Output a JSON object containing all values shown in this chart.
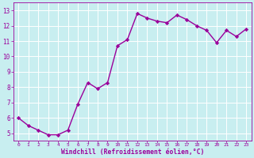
{
  "x": [
    0,
    1,
    2,
    3,
    4,
    5,
    6,
    7,
    8,
    9,
    10,
    11,
    12,
    13,
    14,
    15,
    16,
    17,
    18,
    19,
    20,
    21,
    22,
    23
  ],
  "y": [
    6.0,
    5.5,
    5.2,
    4.9,
    4.9,
    5.2,
    6.9,
    8.3,
    7.9,
    8.3,
    10.7,
    11.1,
    12.8,
    12.5,
    12.3,
    12.2,
    12.7,
    12.4,
    12.0,
    11.7,
    10.9,
    11.7,
    11.3,
    11.8
  ],
  "line_color": "#9b009b",
  "marker": "D",
  "marker_size": 2.2,
  "line_width": 1.0,
  "bg_color": "#c8eef0",
  "grid_color": "#ffffff",
  "xlabel": "Windchill (Refroidissement éolien,°C)",
  "xlabel_color": "#9b009b",
  "tick_color": "#9b009b",
  "ylim": [
    4.5,
    13.5
  ],
  "xlim": [
    -0.5,
    23.5
  ],
  "yticks": [
    5,
    6,
    7,
    8,
    9,
    10,
    11,
    12,
    13
  ],
  "xticks": [
    0,
    1,
    2,
    3,
    4,
    5,
    6,
    7,
    8,
    9,
    10,
    11,
    12,
    13,
    14,
    15,
    16,
    17,
    18,
    19,
    20,
    21,
    22,
    23
  ],
  "xtick_fontsize": 4.5,
  "ytick_fontsize": 5.5,
  "xlabel_fontsize": 5.8
}
